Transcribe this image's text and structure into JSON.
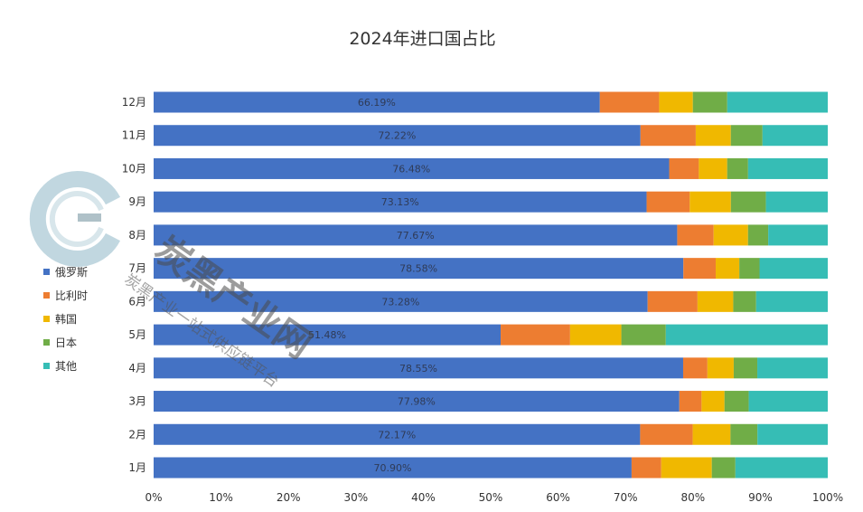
{
  "title": "2024年进口国占比",
  "legend": [
    {
      "name": "俄罗斯",
      "color": "#4472C4"
    },
    {
      "name": "比利时",
      "color": "#ED7D31"
    },
    {
      "name": "韩国",
      "color": "#F0B800"
    },
    {
      "name": "日本",
      "color": "#70AD47"
    },
    {
      "name": "其他",
      "color": "#36BDB5"
    }
  ],
  "watermark": {
    "main_text": "炭黑产业网",
    "sub_text": "炭黑产业一站式供应链平台"
  },
  "chart_data": {
    "type": "bar",
    "orientation": "horizontal",
    "stacked": "percent",
    "title": "2024年进口国占比",
    "categories": [
      "1月",
      "2月",
      "3月",
      "4月",
      "5月",
      "6月",
      "7月",
      "8月",
      "9月",
      "10月",
      "11月",
      "12月"
    ],
    "series": [
      {
        "name": "俄罗斯",
        "color": "#4472C4",
        "values": [
          70.9,
          72.17,
          77.98,
          78.55,
          51.48,
          73.28,
          78.58,
          77.67,
          73.13,
          76.48,
          72.22,
          66.19
        ]
      },
      {
        "name": "比利时",
        "color": "#ED7D31",
        "values": [
          4.4,
          7.8,
          3.3,
          3.6,
          10.3,
          7.4,
          4.8,
          5.4,
          6.4,
          4.4,
          8.2,
          8.8
        ]
      },
      {
        "name": "韩国",
        "color": "#F0B800",
        "values": [
          7.5,
          5.6,
          3.4,
          3.9,
          7.6,
          5.3,
          3.5,
          5.1,
          6.1,
          4.2,
          5.2,
          5.0
        ]
      },
      {
        "name": "日本",
        "color": "#70AD47",
        "values": [
          3.5,
          4.0,
          3.6,
          3.5,
          6.6,
          3.4,
          3.0,
          3.0,
          5.2,
          3.1,
          4.7,
          5.1
        ]
      },
      {
        "name": "其他",
        "color": "#36BDB5",
        "values": [
          13.7,
          10.43,
          11.72,
          10.45,
          24.02,
          10.62,
          10.12,
          8.83,
          9.17,
          11.82,
          9.68,
          14.91
        ]
      }
    ],
    "data_labels": [
      "70.90%",
      "72.17%",
      "77.98%",
      "78.55%",
      "51.48%",
      "73.28%",
      "78.58%",
      "77.67%",
      "73.13%",
      "76.48%",
      "72.22%",
      "66.19%"
    ],
    "x_ticks": [
      "0%",
      "10%",
      "20%",
      "30%",
      "40%",
      "50%",
      "60%",
      "70%",
      "80%",
      "90%",
      "100%"
    ],
    "xlim": [
      0,
      100
    ],
    "grid": false,
    "legend_position": "left"
  }
}
